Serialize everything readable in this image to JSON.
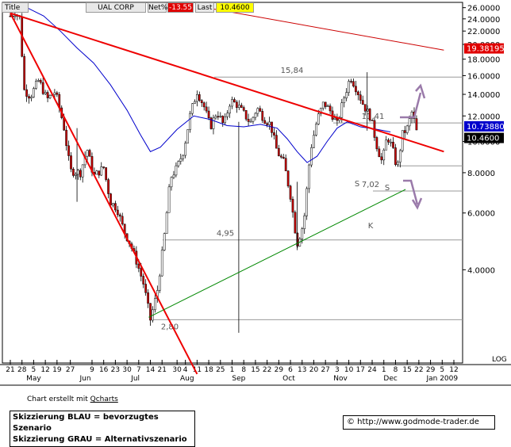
{
  "header": {
    "title_label": "Title",
    "symbol": "UAL CORP",
    "net_label": "Net%",
    "net_value": "-13.55",
    "last_label": "Last",
    "last_value": "10.4600"
  },
  "chart_data": {
    "type": "candlestick",
    "title": "UAL CORP",
    "y_ticks": [
      "26.0000",
      "24.0000",
      "22.0000",
      "20.0000",
      "18.0000",
      "16.0000",
      "14.0000",
      "12.0000",
      "10.0000",
      "8.0000",
      "6.0000",
      "4.0000"
    ],
    "y_scale": "log",
    "ylim": [
      2.2,
      27
    ],
    "x_ticks": [
      {
        "label": "21",
        "d": 0
      },
      {
        "label": "28",
        "d": 7
      },
      {
        "label": "5",
        "d": 14
      },
      {
        "label": "12",
        "d": 21
      },
      {
        "label": "19",
        "d": 28
      },
      {
        "label": "27",
        "d": 36
      },
      {
        "label": "9",
        "d": 49
      },
      {
        "label": "16",
        "d": 56
      },
      {
        "label": "23",
        "d": 63
      },
      {
        "label": "30",
        "d": 70
      },
      {
        "label": "7",
        "d": 77
      },
      {
        "label": "14",
        "d": 84
      },
      {
        "label": "21",
        "d": 91
      },
      {
        "label": "30",
        "d": 100
      },
      {
        "label": "4",
        "d": 105
      },
      {
        "label": "11",
        "d": 112
      },
      {
        "label": "18",
        "d": 119
      },
      {
        "label": "25",
        "d": 126
      },
      {
        "label": "1",
        "d": 133
      },
      {
        "label": "8",
        "d": 140
      },
      {
        "label": "15",
        "d": 147
      },
      {
        "label": "22",
        "d": 154
      },
      {
        "label": "29",
        "d": 161
      },
      {
        "label": "6",
        "d": 168
      },
      {
        "label": "13",
        "d": 175
      },
      {
        "label": "20",
        "d": 182
      },
      {
        "label": "27",
        "d": 189
      },
      {
        "label": "3",
        "d": 196
      },
      {
        "label": "10",
        "d": 203
      },
      {
        "label": "17",
        "d": 210
      },
      {
        "label": "24",
        "d": 217
      },
      {
        "label": "1",
        "d": 224
      },
      {
        "label": "8",
        "d": 231
      },
      {
        "label": "15",
        "d": 238
      },
      {
        "label": "22",
        "d": 245
      },
      {
        "label": "29",
        "d": 252
      },
      {
        "label": "5",
        "d": 259
      },
      {
        "label": "12",
        "d": 266
      }
    ],
    "month_labels": [
      {
        "label": "May",
        "d": 14
      },
      {
        "label": "Jun",
        "d": 45
      },
      {
        "label": "Jul",
        "d": 75
      },
      {
        "label": "Aug",
        "d": 106
      },
      {
        "label": "Sep",
        "d": 137
      },
      {
        "label": "Oct",
        "d": 167
      },
      {
        "label": "Nov",
        "d": 198
      },
      {
        "label": "Dec",
        "d": 228
      },
      {
        "label": "Jan 2009",
        "d": 259
      }
    ],
    "scale_label": "LOG",
    "price_tags": [
      {
        "value": "19.38195",
        "color": "#e00000",
        "text_color": "#ffffff",
        "price": 19.38
      },
      {
        "value": "10.73880",
        "color": "#0000cc",
        "text_color": "#ffffff",
        "price": 10.74
      },
      {
        "value": "10.4600",
        "color": "#000000",
        "text_color": "#ffffff",
        "price": 10.46
      }
    ],
    "levels": [
      {
        "label": "15,84",
        "price": 15.84
      },
      {
        "label": "11,41",
        "price": 11.41
      },
      {
        "label": "",
        "price": 8.4
      },
      {
        "label": "7,02",
        "price": 7.02
      },
      {
        "label": "4,95",
        "price": 4.95
      },
      {
        "label": "2,80",
        "price": 2.8
      }
    ],
    "annotations": [
      "S",
      "S",
      "K"
    ],
    "trendlines": [
      {
        "name": "steil",
        "color": "#ee0000",
        "from": {
          "d": 0,
          "p": 25.0
        },
        "to": {
          "d": 112,
          "p": 1.9
        }
      },
      {
        "name": "haupt",
        "color": "#ee0000",
        "from": {
          "d": 0,
          "p": 25.0
        },
        "to": {
          "d": 260,
          "p": 9.3
        }
      },
      {
        "name": "oben",
        "color": "#cc0000",
        "from": {
          "d": 112,
          "p": 26.3
        },
        "to": {
          "d": 260,
          "p": 19.2
        }
      },
      {
        "name": "unterstuetzung",
        "color": "#008800",
        "from": {
          "d": 83,
          "p": 2.85
        },
        "to": {
          "d": 237,
          "p": 7.1
        }
      }
    ],
    "moving_average": {
      "color": "#0000cc",
      "points": [
        [
          0,
          27
        ],
        [
          10,
          26
        ],
        [
          20,
          24.5
        ],
        [
          30,
          22
        ],
        [
          40,
          19.5
        ],
        [
          50,
          17.5
        ],
        [
          60,
          15
        ],
        [
          70,
          12.5
        ],
        [
          78,
          10.5
        ],
        [
          84,
          9.3
        ],
        [
          90,
          9.6
        ],
        [
          100,
          10.9
        ],
        [
          110,
          12.0
        ],
        [
          120,
          11.7
        ],
        [
          130,
          11.2
        ],
        [
          140,
          11.1
        ],
        [
          150,
          11.3
        ],
        [
          160,
          11.0
        ],
        [
          166,
          10.2
        ],
        [
          172,
          9.3
        ],
        [
          178,
          8.6
        ],
        [
          184,
          9.0
        ],
        [
          190,
          10.0
        ],
        [
          196,
          11.0
        ],
        [
          202,
          11.5
        ],
        [
          210,
          11.1
        ],
        [
          220,
          10.9
        ],
        [
          228,
          10.7
        ]
      ]
    },
    "close_path": [
      [
        0,
        24.5
      ],
      [
        3,
        25.2
      ],
      [
        6,
        24.0
      ],
      [
        8,
        14.5
      ],
      [
        12,
        13.8
      ],
      [
        17,
        15.5
      ],
      [
        22,
        13.5
      ],
      [
        27,
        14.3
      ],
      [
        32,
        11.2
      ],
      [
        36,
        8.1
      ],
      [
        42,
        8.0
      ],
      [
        46,
        9.5
      ],
      [
        50,
        7.8
      ],
      [
        56,
        8.3
      ],
      [
        60,
        6.5
      ],
      [
        64,
        6.2
      ],
      [
        68,
        5.3
      ],
      [
        72,
        4.8
      ],
      [
        76,
        4.2
      ],
      [
        80,
        3.6
      ],
      [
        84,
        2.8
      ],
      [
        88,
        3.4
      ],
      [
        92,
        4.9
      ],
      [
        96,
        7.7
      ],
      [
        100,
        8.3
      ],
      [
        104,
        9.4
      ],
      [
        108,
        12.2
      ],
      [
        112,
        14.3
      ],
      [
        116,
        12.9
      ],
      [
        120,
        11.1
      ],
      [
        124,
        12.4
      ],
      [
        128,
        11.2
      ],
      [
        132,
        13.4
      ],
      [
        136,
        13.0
      ],
      [
        140,
        12.2
      ],
      [
        144,
        11.4
      ],
      [
        148,
        12.7
      ],
      [
        152,
        11.8
      ],
      [
        156,
        11.3
      ],
      [
        160,
        9.3
      ],
      [
        164,
        8.6
      ],
      [
        168,
        6.8
      ],
      [
        172,
        4.8
      ],
      [
        176,
        5.6
      ],
      [
        180,
        9.4
      ],
      [
        184,
        11.7
      ],
      [
        188,
        13.2
      ],
      [
        192,
        12.4
      ],
      [
        196,
        11.3
      ],
      [
        200,
        13.6
      ],
      [
        204,
        15.9
      ],
      [
        208,
        14.4
      ],
      [
        212,
        12.9
      ],
      [
        216,
        11.9
      ],
      [
        220,
        9.6
      ],
      [
        223,
        8.6
      ],
      [
        226,
        10.4
      ],
      [
        229,
        9.6
      ],
      [
        232,
        8.2
      ],
      [
        235,
        10.5
      ],
      [
        238,
        11.0
      ],
      [
        241,
        12.4
      ],
      [
        244,
        10.5
      ]
    ],
    "arrows": [
      {
        "color": "#9a7aaa",
        "dir": "up"
      },
      {
        "color": "#9a7aaa",
        "dir": "down"
      }
    ]
  },
  "footer": {
    "credit_prefix": "Chart erstellt mit ",
    "credit_link": "Qcharts",
    "legend_line1": "Skizzierung BLAU = bevorzugtes Szenario",
    "legend_line2": "Skizzierung GRAU = Alternativszenario",
    "source": "© http://www.godmode-trader.de"
  }
}
